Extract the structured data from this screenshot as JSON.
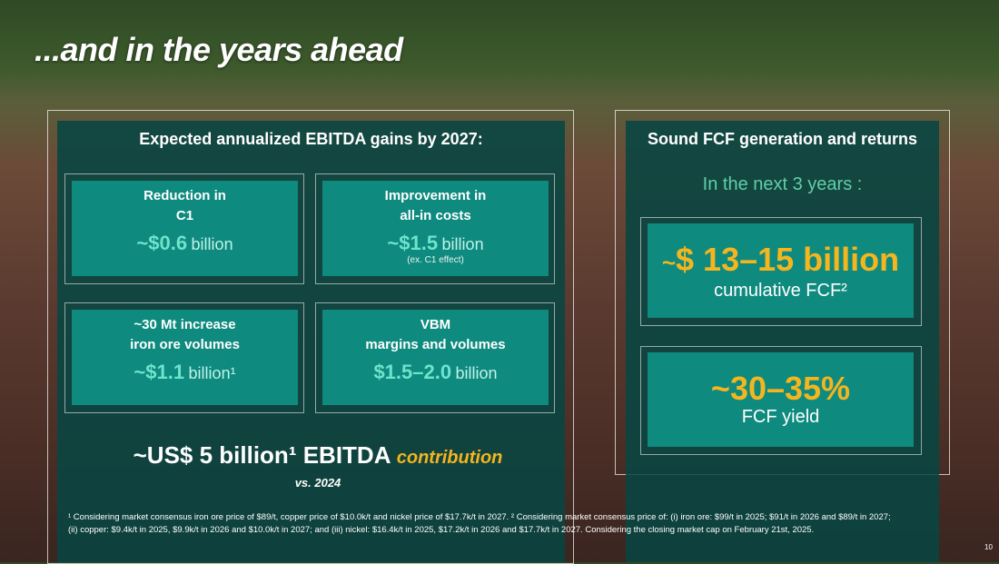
{
  "title": "...and in the years ahead",
  "left": {
    "heading": "Expected annualized EBITDA gains by 2027:",
    "cards": [
      {
        "label_lines": [
          "Reduction in",
          "C1"
        ],
        "value": "~$0.6",
        "unit": "billion"
      },
      {
        "label_lines": [
          "Improvement in",
          "all-in costs"
        ],
        "value": "~$1.5",
        "unit": "billion",
        "note": "(ex. C1 effect)"
      },
      {
        "label_lines": [
          "~30 Mt increase",
          "iron ore volumes"
        ],
        "value": "~$1.1",
        "unit": "billion¹"
      },
      {
        "label_lines": [
          "VBM",
          "margins and volumes"
        ],
        "value": "$1.5–2.0",
        "unit": "billion"
      }
    ],
    "total": "~US$ 5 billion¹ EBITDA",
    "total_suffix": "contribution",
    "comparison": "vs. 2024"
  },
  "right": {
    "heading": "Sound FCF generation and returns",
    "subheading": "In the next 3 years :",
    "boxes": [
      {
        "prefix": "~",
        "value": "$ 13–15 billion",
        "label": "cumulative FCF²"
      },
      {
        "value": "~30–35%",
        "label": "FCF yield"
      }
    ]
  },
  "footnotes": [
    "¹ Considering market consensus iron ore price of $89/t, copper price of $10.0k/t and nickel price of $17.7k/t in 2027. ² Considering market consensus price of: (i) iron ore:  $99/t in 2025; $91/t in 2026 and $89/t in 2027;",
    "(ii) copper: $9.4k/t in 2025, $9.9k/t in 2026 and  $10.0k/t in 2027; and (iii) nickel: $16.4k/t in 2025, $17.2k/t in 2026 and $17.7k/t in 2027. Considering the closing market cap on February 21st, 2025."
  ],
  "page_number": "10"
}
